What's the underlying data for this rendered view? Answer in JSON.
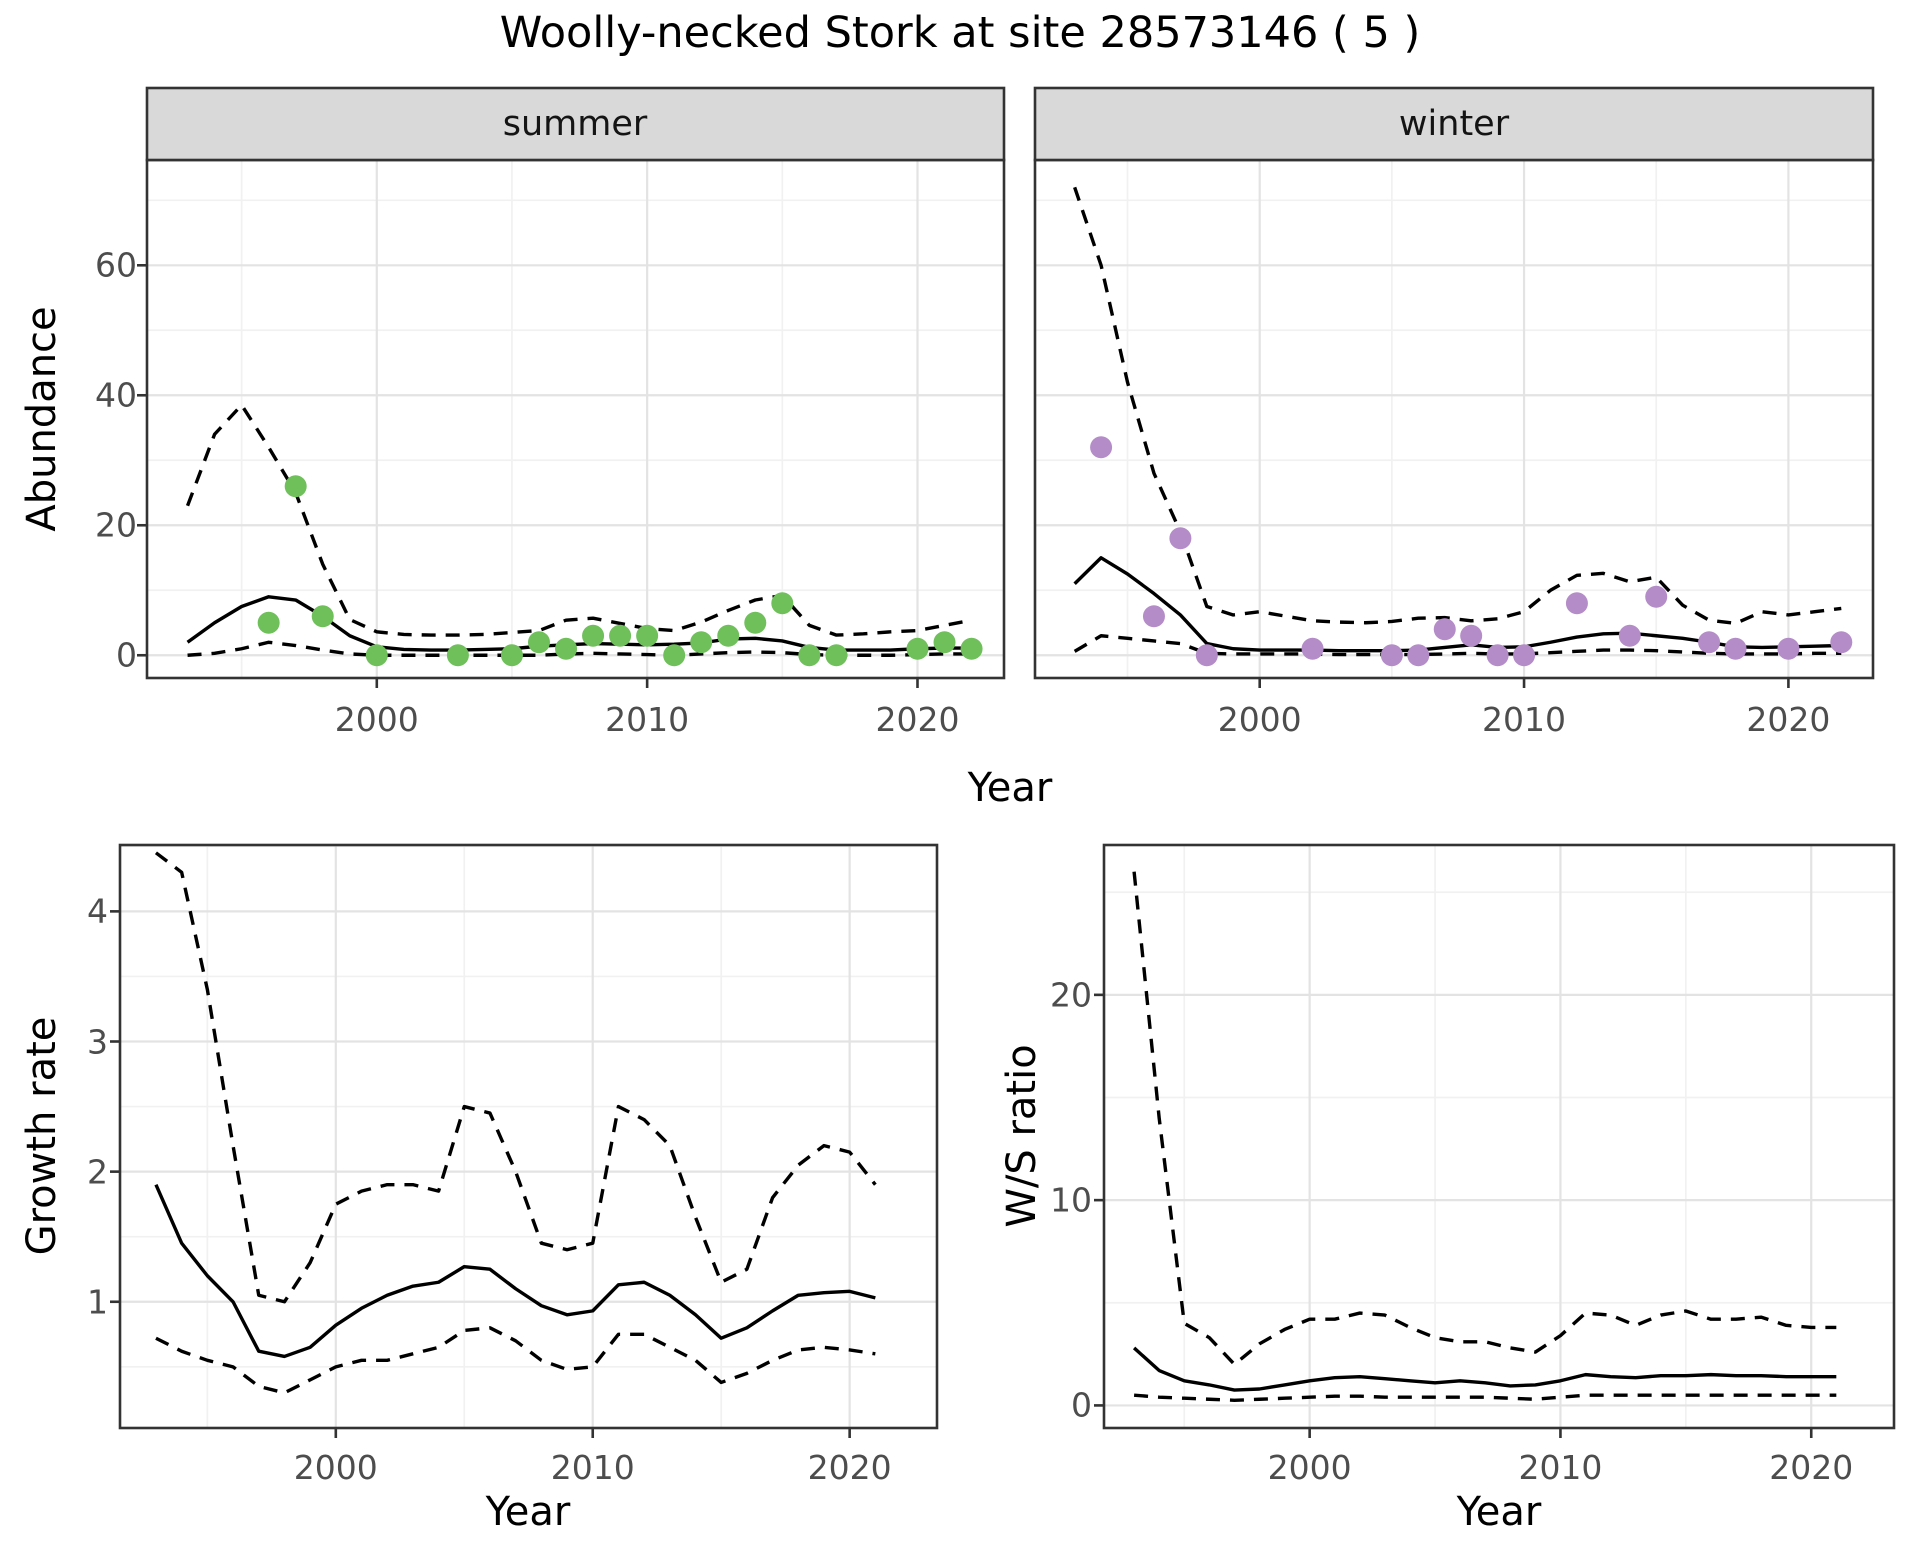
{
  "title": "Woolly-necked Stork at site 28573146 ( 5 )",
  "colors": {
    "summer_point": "#6FBF5B",
    "winter_point": "#B48CC8",
    "line": "#000000",
    "grid_major": "#E3E3E3",
    "grid_minor": "#F1F1F1",
    "strip_bg": "#D9D9D9",
    "panel_border": "#333333",
    "tick_label": "#4D4D4D"
  },
  "chart_data": [
    {
      "id": "abundance-summer",
      "type": "line",
      "facet_label": "summer",
      "ylabel": "Abundance",
      "xlabel": "Year",
      "xlim": [
        1991.5,
        2023.2
      ],
      "ylim": [
        -3.5,
        76.2
      ],
      "xticks": [
        2000,
        2010,
        2020
      ],
      "xminor": [
        1995,
        2005,
        2015
      ],
      "yticks": [
        0,
        20,
        40,
        60
      ],
      "yminor": [
        10,
        30,
        50,
        70
      ],
      "grid": true,
      "legend": "none",
      "years": [
        1993,
        1994,
        1995,
        1996,
        1997,
        1998,
        1999,
        2000,
        2001,
        2002,
        2003,
        2004,
        2005,
        2006,
        2007,
        2008,
        2009,
        2010,
        2011,
        2012,
        2013,
        2014,
        2015,
        2016,
        2017,
        2018,
        2019,
        2020,
        2021,
        2022
      ],
      "fit": [
        2,
        5,
        7.5,
        9,
        8.5,
        6,
        3,
        1.3,
        0.9,
        0.8,
        0.8,
        0.9,
        1.0,
        1.4,
        1.6,
        1.8,
        1.7,
        1.6,
        1.7,
        1.9,
        2.5,
        2.6,
        2.2,
        1.2,
        0.8,
        0.8,
        0.8,
        1.0,
        1.1,
        1.1
      ],
      "upper": [
        23,
        34,
        38.5,
        32,
        25,
        14,
        5.5,
        3.6,
        3.2,
        3.1,
        3.1,
        3.2,
        3.5,
        3.8,
        5.4,
        5.7,
        4.9,
        4.1,
        3.8,
        5.1,
        6.9,
        8.5,
        9.2,
        4.6,
        3.1,
        3.3,
        3.6,
        3.8,
        4.6,
        5.4
      ],
      "lower": [
        0,
        0.3,
        1.0,
        2.0,
        1.5,
        0.8,
        0.2,
        0,
        0,
        0,
        0,
        0,
        0,
        0,
        0.2,
        0.3,
        0.2,
        0.1,
        0,
        0.2,
        0.4,
        0.5,
        0.4,
        0.1,
        0,
        0,
        0,
        0.1,
        0.2,
        0.2
      ],
      "points": {
        "x": [
          1996,
          1997,
          1998,
          2000,
          2003,
          2005,
          2006,
          2007,
          2008,
          2009,
          2010,
          2011,
          2012,
          2013,
          2014,
          2015,
          2016,
          2017,
          2020,
          2021,
          2022
        ],
        "y": [
          5,
          26,
          6,
          0,
          0,
          0,
          2,
          1,
          3,
          3,
          3,
          0,
          2,
          3,
          5,
          8,
          0,
          0,
          1,
          2,
          1
        ]
      }
    },
    {
      "id": "abundance-winter",
      "type": "line",
      "facet_label": "winter",
      "ylabel": "Abundance",
      "xlabel": "Year",
      "xlim": [
        1991.5,
        2023.2
      ],
      "ylim": [
        -3.5,
        76.2
      ],
      "xticks": [
        2000,
        2010,
        2020
      ],
      "xminor": [
        1995,
        2005,
        2015
      ],
      "yticks": [
        0,
        20,
        40,
        60
      ],
      "yminor": [
        10,
        30,
        50,
        70
      ],
      "grid": true,
      "legend": "none",
      "years": [
        1993,
        1994,
        1995,
        1996,
        1997,
        1998,
        1999,
        2000,
        2001,
        2002,
        2003,
        2004,
        2005,
        2006,
        2007,
        2008,
        2009,
        2010,
        2011,
        2012,
        2013,
        2014,
        2015,
        2016,
        2017,
        2018,
        2019,
        2020,
        2021,
        2022
      ],
      "fit": [
        11,
        15,
        12.5,
        9.5,
        6.2,
        1.8,
        1.0,
        0.8,
        0.8,
        0.8,
        0.7,
        0.7,
        0.7,
        0.8,
        1.2,
        1.6,
        1.2,
        1.3,
        2.0,
        2.8,
        3.3,
        3.4,
        3.0,
        2.6,
        2.0,
        1.3,
        1.2,
        1.3,
        1.4,
        1.5
      ],
      "upper": [
        72,
        60,
        42,
        28,
        19,
        7.5,
        6.2,
        6.7,
        6.0,
        5.3,
        5.1,
        5.0,
        5.2,
        5.7,
        5.8,
        5.3,
        5.6,
        6.7,
        10,
        12.3,
        12.6,
        11.3,
        12.0,
        7.7,
        5.4,
        4.9,
        6.7,
        6.2,
        6.7,
        7.2
      ],
      "lower": [
        0.6,
        3.0,
        2.6,
        2.2,
        1.8,
        0.3,
        0.2,
        0.2,
        0.2,
        0.2,
        0.1,
        0.1,
        0.1,
        0.1,
        0.2,
        0.3,
        0.2,
        0.2,
        0.4,
        0.6,
        0.8,
        0.8,
        0.7,
        0.5,
        0.3,
        0.2,
        0.2,
        0.2,
        0.3,
        0.3
      ],
      "points": {
        "x": [
          1994,
          1996,
          1997,
          1998,
          2002,
          2005,
          2006,
          2007,
          2008,
          2009,
          2010,
          2012,
          2014,
          2015,
          2017,
          2018,
          2020,
          2022
        ],
        "y": [
          32,
          6,
          18,
          0,
          1,
          0,
          0,
          4,
          3,
          0,
          0,
          8,
          3,
          9,
          2,
          1,
          1,
          2
        ]
      }
    },
    {
      "id": "growth-rate",
      "type": "line",
      "facet_label": "",
      "ylabel": "Growth rate",
      "xlabel": "Year",
      "xlim": [
        1991.6,
        2023.4
      ],
      "ylim": [
        0.03,
        4.51
      ],
      "xticks": [
        2000,
        2010,
        2020
      ],
      "xminor": [
        1995,
        2005,
        2015
      ],
      "yticks": [
        1,
        2,
        3,
        4
      ],
      "yminor": [
        0.5,
        1.5,
        2.5,
        3.5,
        4.5
      ],
      "grid": true,
      "legend": "none",
      "years": [
        1993,
        1994,
        1995,
        1996,
        1997,
        1998,
        1999,
        2000,
        2001,
        2002,
        2003,
        2004,
        2005,
        2006,
        2007,
        2008,
        2009,
        2010,
        2011,
        2012,
        2013,
        2014,
        2015,
        2016,
        2017,
        2018,
        2019,
        2020,
        2021
      ],
      "fit": [
        1.9,
        1.45,
        1.2,
        1.0,
        0.62,
        0.58,
        0.65,
        0.82,
        0.95,
        1.05,
        1.12,
        1.15,
        1.27,
        1.25,
        1.1,
        0.97,
        0.9,
        0.93,
        1.13,
        1.15,
        1.05,
        0.9,
        0.72,
        0.8,
        0.93,
        1.05,
        1.07,
        1.08,
        1.03
      ],
      "upper": [
        4.45,
        4.3,
        3.4,
        2.2,
        1.05,
        1.0,
        1.3,
        1.75,
        1.85,
        1.9,
        1.9,
        1.85,
        2.5,
        2.45,
        2.0,
        1.45,
        1.4,
        1.45,
        2.5,
        2.4,
        2.2,
        1.65,
        1.15,
        1.25,
        1.8,
        2.05,
        2.2,
        2.15,
        1.9
      ],
      "lower": [
        0.72,
        0.62,
        0.55,
        0.5,
        0.35,
        0.3,
        0.4,
        0.5,
        0.55,
        0.55,
        0.6,
        0.65,
        0.78,
        0.8,
        0.7,
        0.55,
        0.48,
        0.5,
        0.75,
        0.75,
        0.65,
        0.55,
        0.38,
        0.45,
        0.55,
        0.63,
        0.65,
        0.63,
        0.6
      ],
      "points": {
        "x": [],
        "y": []
      }
    },
    {
      "id": "ws-ratio",
      "type": "line",
      "facet_label": "",
      "ylabel": "W/S ratio",
      "xlabel": "Year",
      "xlim": [
        1991.8,
        2023.3
      ],
      "ylim": [
        -1.1,
        27.3
      ],
      "xticks": [
        2000,
        2010,
        2020
      ],
      "xminor": [
        1995,
        2005,
        2015
      ],
      "yticks": [
        0,
        10,
        20
      ],
      "yminor": [
        5,
        15,
        25
      ],
      "grid": true,
      "legend": "none",
      "years": [
        1993,
        1994,
        1995,
        1996,
        1997,
        1998,
        1999,
        2000,
        2001,
        2002,
        2003,
        2004,
        2005,
        2006,
        2007,
        2008,
        2009,
        2010,
        2011,
        2012,
        2013,
        2014,
        2015,
        2016,
        2017,
        2018,
        2019,
        2020,
        2021
      ],
      "fit": [
        2.8,
        1.7,
        1.2,
        1.0,
        0.75,
        0.8,
        1.0,
        1.2,
        1.35,
        1.4,
        1.3,
        1.2,
        1.1,
        1.2,
        1.1,
        0.95,
        1.0,
        1.2,
        1.5,
        1.4,
        1.35,
        1.45,
        1.45,
        1.5,
        1.45,
        1.45,
        1.4,
        1.4,
        1.4
      ],
      "upper": [
        26,
        14,
        4.0,
        3.3,
        2.0,
        3.0,
        3.7,
        4.2,
        4.2,
        4.5,
        4.4,
        3.8,
        3.3,
        3.1,
        3.1,
        2.8,
        2.6,
        3.4,
        4.5,
        4.4,
        3.9,
        4.4,
        4.6,
        4.2,
        4.2,
        4.3,
        3.9,
        3.8,
        3.8
      ],
      "lower": [
        0.5,
        0.4,
        0.35,
        0.3,
        0.25,
        0.3,
        0.35,
        0.4,
        0.45,
        0.45,
        0.4,
        0.4,
        0.4,
        0.4,
        0.4,
        0.35,
        0.3,
        0.4,
        0.5,
        0.5,
        0.5,
        0.5,
        0.5,
        0.5,
        0.5,
        0.5,
        0.5,
        0.5,
        0.5
      ],
      "points": {
        "x": [],
        "y": []
      }
    }
  ]
}
